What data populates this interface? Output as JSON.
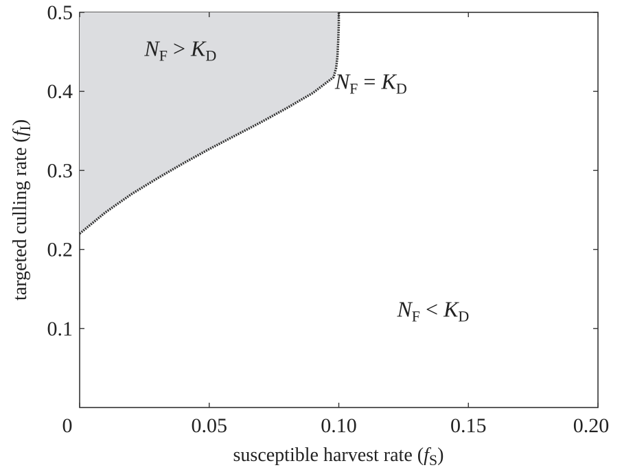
{
  "chart_data": {
    "type": "area",
    "xlabel": {
      "text": "susceptible harvest rate (",
      "var": "f",
      "sub": "S",
      "close": ")"
    },
    "ylabel": {
      "text": "targeted culling rate (",
      "var": "f",
      "sub": "I",
      "close": ")"
    },
    "xlim": [
      0,
      0.2
    ],
    "ylim": [
      0,
      0.5
    ],
    "x_ticks": [
      {
        "value": 0,
        "label": "0"
      },
      {
        "value": 0.05,
        "label": "0.05"
      },
      {
        "value": 0.1,
        "label": "0.10"
      },
      {
        "value": 0.15,
        "label": "0.15"
      },
      {
        "value": 0.2,
        "label": "0.20"
      }
    ],
    "y_ticks": [
      {
        "value": 0.1,
        "label": "0.1"
      },
      {
        "value": 0.2,
        "label": "0.2"
      },
      {
        "value": 0.3,
        "label": "0.3"
      },
      {
        "value": 0.4,
        "label": "0.4"
      },
      {
        "value": 0.5,
        "label": "0.5"
      }
    ],
    "boundary": {
      "x": [
        0,
        0.01,
        0.02,
        0.03,
        0.04,
        0.05,
        0.06,
        0.07,
        0.08,
        0.09,
        0.098,
        0.099,
        0.0995,
        0.0998,
        0.1,
        0.1
      ],
      "y": [
        0.22,
        0.247,
        0.27,
        0.29,
        0.309,
        0.327,
        0.344,
        0.361,
        0.379,
        0.398,
        0.418,
        0.43,
        0.445,
        0.465,
        0.485,
        0.5
      ]
    },
    "fill_color": "#dcdde0",
    "line_color": "#333333",
    "annotations": [
      {
        "id": "gt",
        "x": 0.025,
        "y": 0.445,
        "n": "N",
        "n_sub": "F",
        "op": ">",
        "k": "K",
        "k_sub": "D"
      },
      {
        "id": "eq",
        "x": 0.0985,
        "y": 0.403,
        "n": "N",
        "n_sub": "F",
        "op": "=",
        "k": "K",
        "k_sub": "D"
      },
      {
        "id": "lt",
        "x": 0.1225,
        "y": 0.115,
        "n": "N",
        "n_sub": "F",
        "op": "<",
        "k": "K",
        "k_sub": "D"
      }
    ]
  }
}
